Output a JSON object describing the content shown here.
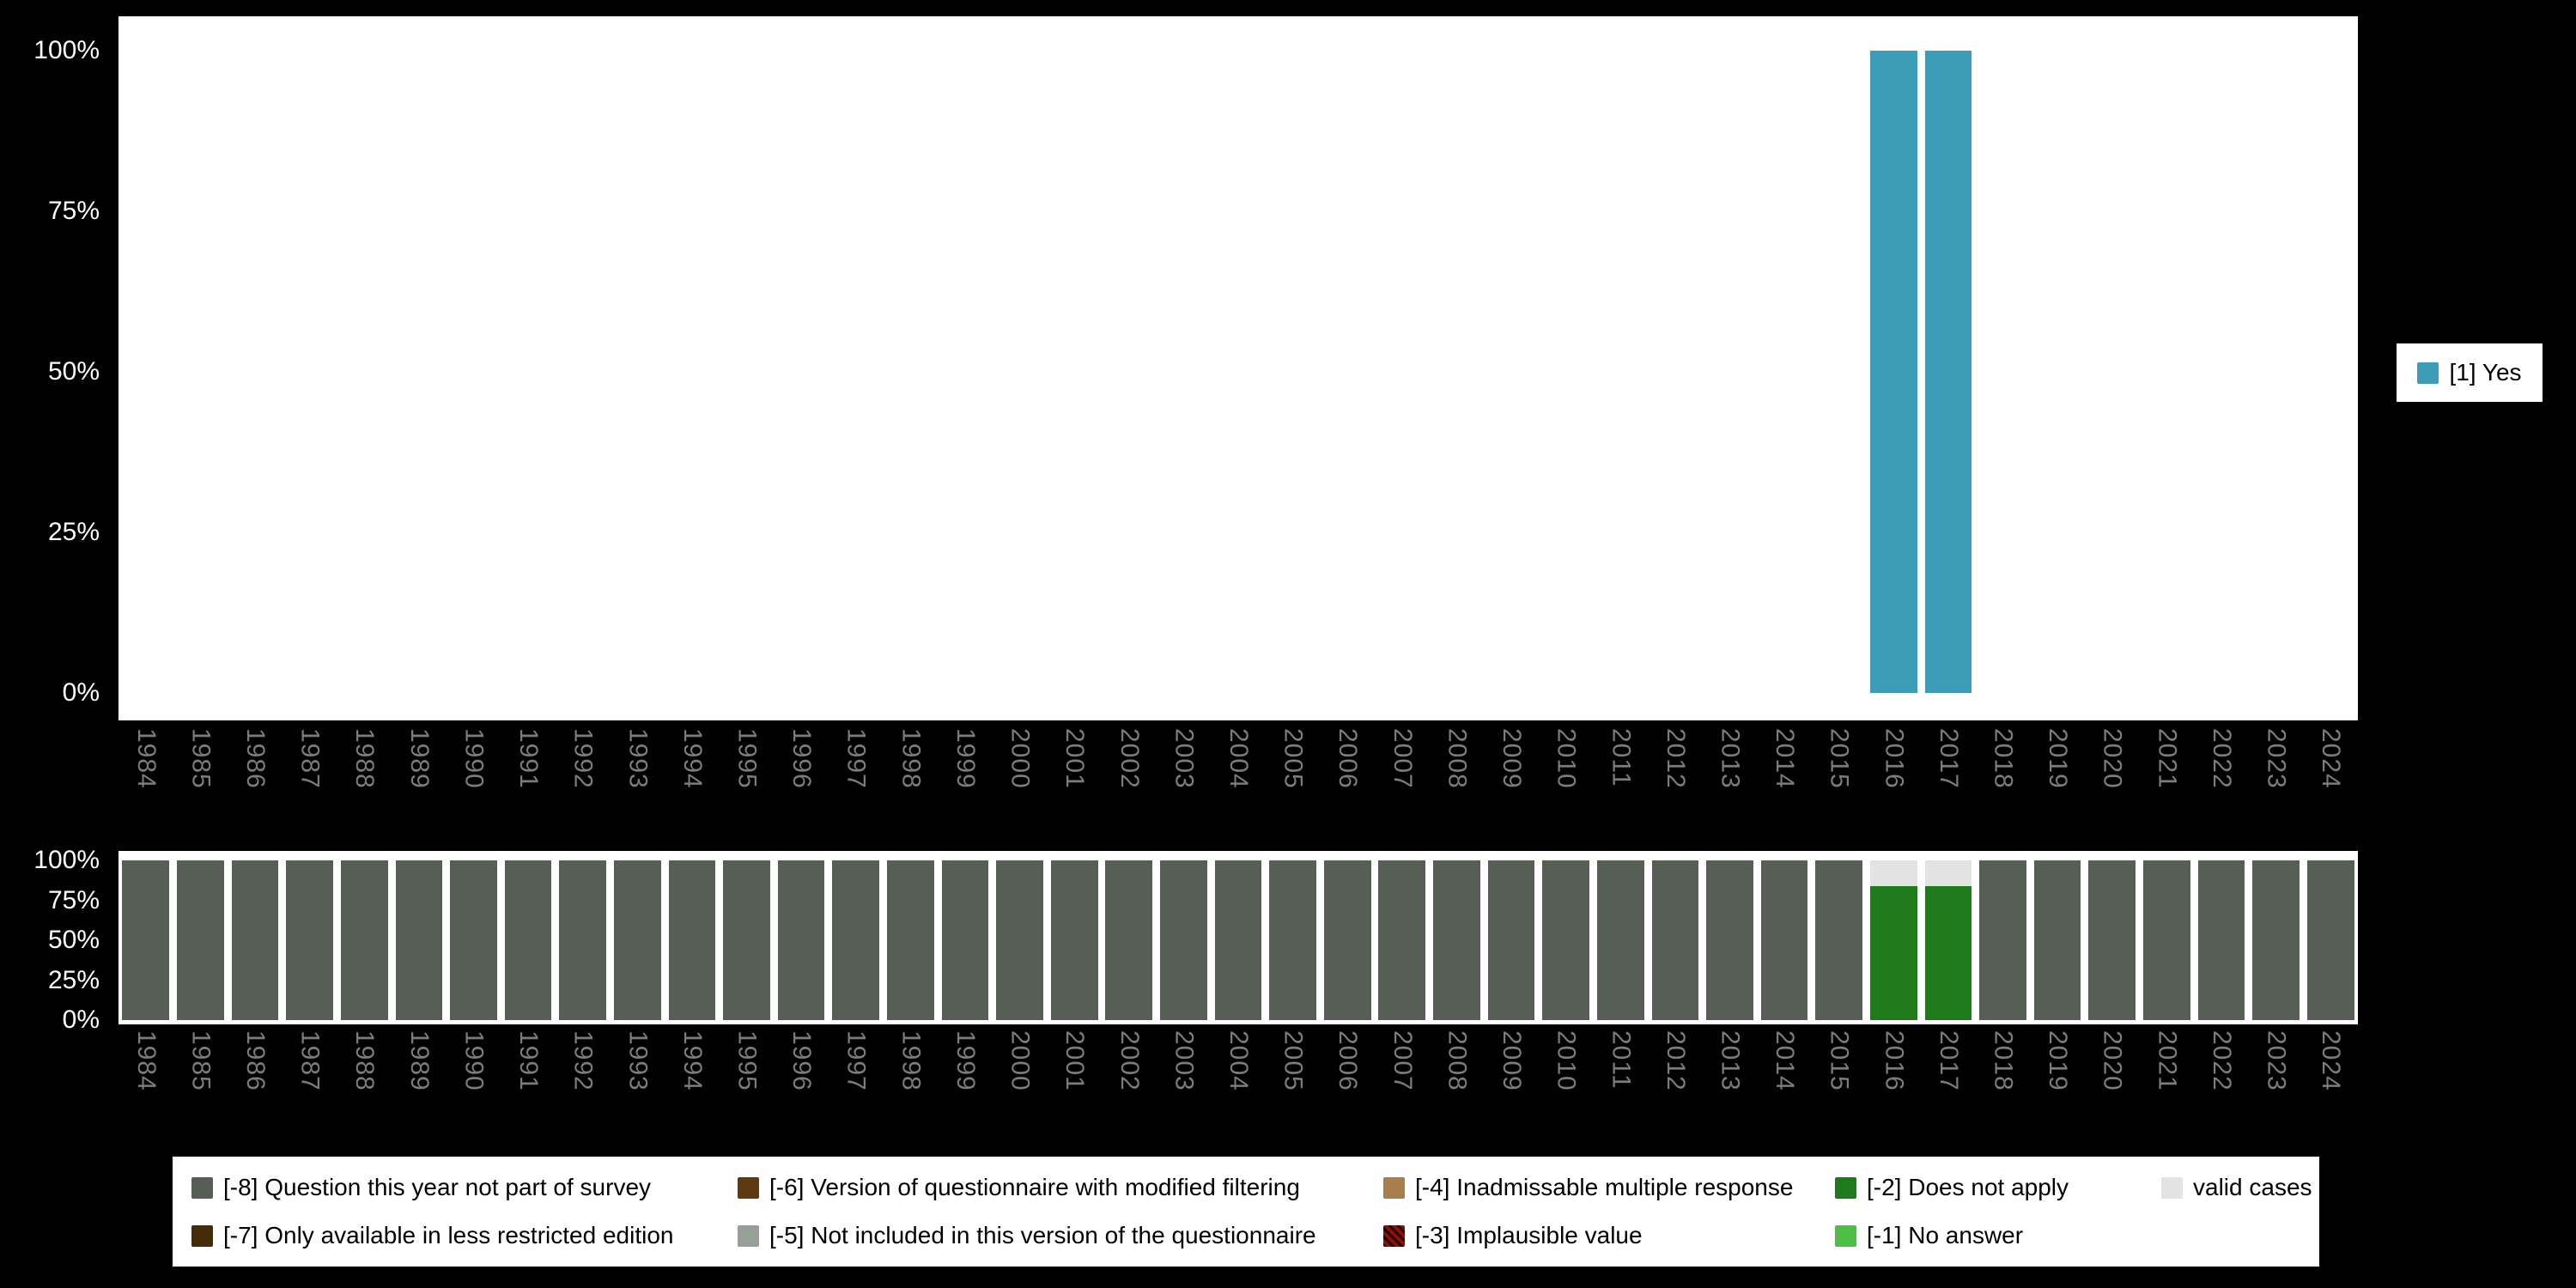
{
  "colors": {
    "background": "#000000",
    "plot_background": "#ffffff",
    "axis_tick_text": "#ffffff",
    "year_label_text": "#7c7c7c",
    "legend_text": "#000000"
  },
  "chart_data": [
    {
      "type": "bar",
      "title": "",
      "xlabel": "",
      "ylabel": "",
      "ylim": [
        0,
        100
      ],
      "yticks": [
        "100%",
        "75%",
        "50%",
        "25%",
        "0%"
      ],
      "grid": false,
      "legend_position": "right",
      "categories": [
        "1984",
        "1985",
        "1986",
        "1987",
        "1988",
        "1989",
        "1990",
        "1991",
        "1992",
        "1993",
        "1994",
        "1995",
        "1996",
        "1997",
        "1998",
        "1999",
        "2000",
        "2001",
        "2002",
        "2003",
        "2004",
        "2005",
        "2006",
        "2007",
        "2008",
        "2009",
        "2010",
        "2011",
        "2012",
        "2013",
        "2014",
        "2015",
        "2016",
        "2017",
        "2018",
        "2019",
        "2020",
        "2021",
        "2022",
        "2023",
        "2024"
      ],
      "series": [
        {
          "name": "[1] Yes",
          "key": "yes",
          "color": "#3d9db8",
          "values": [
            0,
            0,
            0,
            0,
            0,
            0,
            0,
            0,
            0,
            0,
            0,
            0,
            0,
            0,
            0,
            0,
            0,
            0,
            0,
            0,
            0,
            0,
            0,
            0,
            0,
            0,
            0,
            0,
            0,
            0,
            0,
            0,
            100,
            100,
            0,
            0,
            0,
            0,
            0,
            0,
            0
          ]
        }
      ]
    },
    {
      "type": "stacked-bar",
      "title": "",
      "xlabel": "",
      "ylabel": "",
      "ylim": [
        0,
        100
      ],
      "yticks": [
        "100%",
        "75%",
        "50%",
        "25%",
        "0%"
      ],
      "grid": false,
      "legend_position": "bottom",
      "categories": [
        "1984",
        "1985",
        "1986",
        "1987",
        "1988",
        "1989",
        "1990",
        "1991",
        "1992",
        "1993",
        "1994",
        "1995",
        "1996",
        "1997",
        "1998",
        "1999",
        "2000",
        "2001",
        "2002",
        "2003",
        "2004",
        "2005",
        "2006",
        "2007",
        "2008",
        "2009",
        "2010",
        "2011",
        "2012",
        "2013",
        "2014",
        "2015",
        "2016",
        "2017",
        "2018",
        "2019",
        "2020",
        "2021",
        "2022",
        "2023",
        "2024"
      ],
      "series": [
        {
          "name": "[-8] Question this year not part of survey",
          "key": "question-not-part-of-survey",
          "color": "#565e56",
          "values": [
            100,
            100,
            100,
            100,
            100,
            100,
            100,
            100,
            100,
            100,
            100,
            100,
            100,
            100,
            100,
            100,
            100,
            100,
            100,
            100,
            100,
            100,
            100,
            100,
            100,
            100,
            100,
            100,
            100,
            100,
            100,
            100,
            0,
            0,
            100,
            100,
            100,
            100,
            100,
            100,
            100
          ]
        },
        {
          "name": "[-2] Does not apply",
          "key": "does-not-apply",
          "color": "#1f7a1c",
          "values": [
            0,
            0,
            0,
            0,
            0,
            0,
            0,
            0,
            0,
            0,
            0,
            0,
            0,
            0,
            0,
            0,
            0,
            0,
            0,
            0,
            0,
            0,
            0,
            0,
            0,
            0,
            0,
            0,
            0,
            0,
            0,
            0,
            84,
            84,
            0,
            0,
            0,
            0,
            0,
            0,
            0
          ]
        },
        {
          "name": "valid cases",
          "key": "valid-cases",
          "color": "#e3e3e3",
          "values": [
            0,
            0,
            0,
            0,
            0,
            0,
            0,
            0,
            0,
            0,
            0,
            0,
            0,
            0,
            0,
            0,
            0,
            0,
            0,
            0,
            0,
            0,
            0,
            0,
            0,
            0,
            0,
            0,
            0,
            0,
            0,
            0,
            16,
            16,
            0,
            0,
            0,
            0,
            0,
            0,
            0
          ]
        }
      ]
    }
  ],
  "legend_right": {
    "items": [
      {
        "label": "[1] Yes",
        "key": "yes",
        "color": "#3d9db8"
      }
    ]
  },
  "legend_bottom": {
    "rows": [
      [
        {
          "label": "[-8] Question this year not part of survey",
          "key": "q-not-part-of-survey",
          "color": "#565e56"
        },
        {
          "label": "[-6] Version of questionnaire with modified filtering",
          "key": "modified-filtering",
          "color": "#5e3a12"
        },
        {
          "label": "[-4] Inadmissable multiple response",
          "key": "inadmissable-multiple-response",
          "color": "#a87e4f"
        },
        {
          "label": "[-2] Does not apply",
          "key": "does-not-apply",
          "color": "#1f7a1c"
        },
        {
          "label": "valid cases",
          "key": "valid-cases",
          "color": "#e3e3e3"
        }
      ],
      [
        {
          "label": "[-7] Only available in less restricted edition",
          "key": "less-restricted-edition",
          "color": "#432c06"
        },
        {
          "label": "[-5] Not included in this version of the questionnaire",
          "key": "not-in-this-version",
          "color": "#96a096"
        },
        {
          "label": "[-3] Implausible value",
          "key": "implausible-value",
          "color": "#8f1000",
          "pattern": "hatch"
        },
        {
          "label": "[-1] No answer",
          "key": "no-answer",
          "color": "#4dbf45"
        }
      ]
    ]
  }
}
